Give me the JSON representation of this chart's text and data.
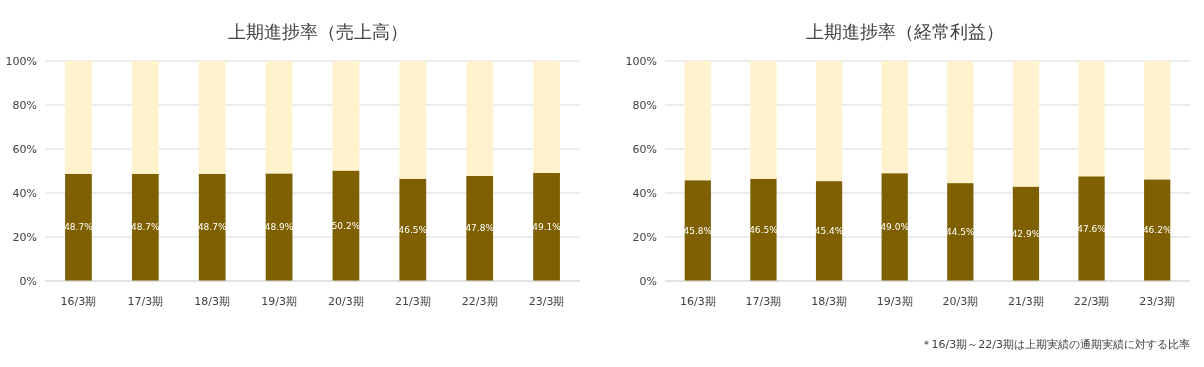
{
  "chart_data": [
    {
      "type": "bar",
      "title": "上期進捗率（売上高）",
      "categories": [
        "16/3期",
        "17/3期",
        "18/3期",
        "19/3期",
        "20/3期",
        "21/3期",
        "22/3期",
        "23/3期"
      ],
      "stacked": true,
      "ylim": [
        0,
        100
      ],
      "yticks": [
        {
          "value": 0,
          "label": "0%"
        },
        {
          "value": 20,
          "label": "20%"
        },
        {
          "value": 40,
          "label": "40%"
        },
        {
          "value": 60,
          "label": "60%"
        },
        {
          "value": 80,
          "label": "80%"
        },
        {
          "value": 100,
          "label": "100%"
        }
      ],
      "grid": "y",
      "series": [
        {
          "color": "#7f6000",
          "values": [
            48.7,
            48.7,
            48.7,
            48.9,
            50.2,
            46.5,
            47.8,
            49.1
          ],
          "value_labels": [
            "48.7%",
            "48.7%",
            "48.7%",
            "48.9%",
            "50.2%",
            "46.5%",
            "47.8%",
            "49.1%"
          ]
        },
        {
          "color": "#fff2cc",
          "values": [
            51.3,
            51.3,
            51.3,
            51.1,
            49.8,
            53.5,
            52.2,
            50.9
          ]
        }
      ]
    },
    {
      "type": "bar",
      "title": "上期進捗率（経常利益）",
      "categories": [
        "16/3期",
        "17/3期",
        "18/3期",
        "19/3期",
        "20/3期",
        "21/3期",
        "22/3期",
        "23/3期"
      ],
      "stacked": true,
      "ylim": [
        0,
        100
      ],
      "yticks": [
        {
          "value": 0,
          "label": "0%"
        },
        {
          "value": 20,
          "label": "20%"
        },
        {
          "value": 40,
          "label": "40%"
        },
        {
          "value": 60,
          "label": "60%"
        },
        {
          "value": 80,
          "label": "80%"
        },
        {
          "value": 100,
          "label": "100%"
        }
      ],
      "grid": "y",
      "annotations": [
        "＊16/3期～22/3期は上期実績の通期実績に対する比率"
      ],
      "series": [
        {
          "color": "#7f6000",
          "values": [
            45.8,
            46.5,
            45.4,
            49.0,
            44.5,
            42.9,
            47.6,
            46.2
          ],
          "value_labels": [
            "45.8%",
            "46.5%",
            "45.4%",
            "49.0%",
            "44.5%",
            "42.9%",
            "47.6%",
            "46.2%"
          ]
        },
        {
          "color": "#fff2cc",
          "values": [
            54.2,
            53.5,
            54.6,
            51.0,
            55.5,
            57.1,
            52.4,
            53.8
          ]
        }
      ]
    }
  ]
}
